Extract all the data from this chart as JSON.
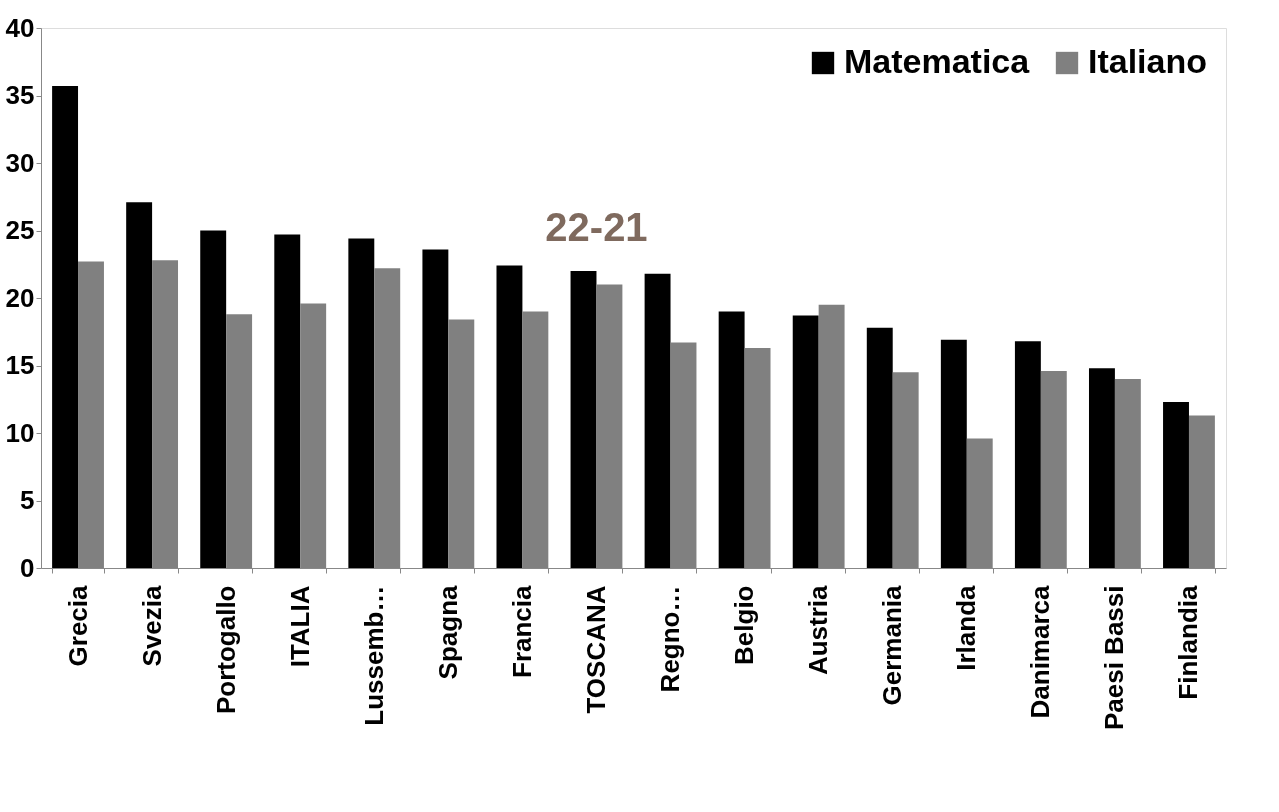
{
  "chart_data": {
    "type": "bar",
    "categories": [
      "Grecia",
      "Svezia",
      "Portogallo",
      "ITALIA",
      "Lussemb…",
      "Spagna",
      "Francia",
      "TOSCANA",
      "Regno…",
      "Belgio",
      "Austria",
      "Germania",
      "Irlanda",
      "Danimarca",
      "Paesi Bassi",
      "Finlandia"
    ],
    "series": [
      {
        "name": "Matematica",
        "color": "#000000",
        "values": [
          35.7,
          27.1,
          25.0,
          24.7,
          24.4,
          23.6,
          22.4,
          22.0,
          21.8,
          19.0,
          18.7,
          17.8,
          16.9,
          16.8,
          14.8,
          12.3
        ]
      },
      {
        "name": "Italiano",
        "color": "#808080",
        "values": [
          22.7,
          22.8,
          18.8,
          19.6,
          22.2,
          18.4,
          19.0,
          21.0,
          16.7,
          16.3,
          19.5,
          14.5,
          9.6,
          14.6,
          14.0,
          11.3
        ]
      }
    ],
    "ylim": [
      0,
      40
    ],
    "yticks": [
      0,
      5,
      10,
      15,
      20,
      25,
      30,
      35,
      40
    ],
    "grid": false,
    "legend": "top right",
    "annotations": [
      {
        "text": "22-21",
        "x": "TOSCANA",
        "y": 22
      }
    ]
  }
}
